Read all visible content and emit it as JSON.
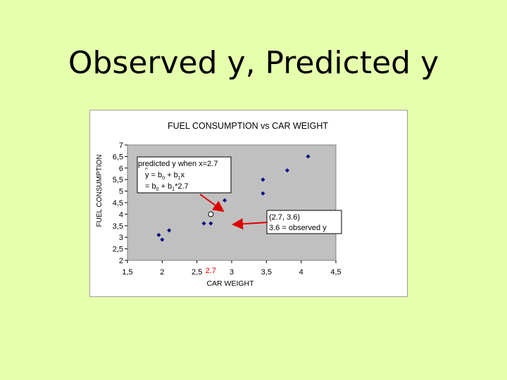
{
  "slide": {
    "title": "Observed y, Predicted y"
  },
  "colors": {
    "background": "#e6ffad",
    "plot_area": "#c0c0c0",
    "marker": "#000080",
    "arrow": "#dd0000",
    "highlight": "#dd0000"
  },
  "chart_data": {
    "type": "scatter",
    "title": "FUEL CONSUMPTION vs CAR WEIGHT",
    "xlabel": "CAR WEIGHT",
    "ylabel": "FUEL CONSUMPTION",
    "xlim": [
      1.5,
      4.5
    ],
    "ylim": [
      2,
      7
    ],
    "x_ticks": [
      1.5,
      2,
      2.5,
      3,
      3.5,
      4,
      4.5
    ],
    "x_tick_labels": [
      "1,5",
      "2",
      "2,5",
      "3",
      "3,5",
      "4",
      "4,5"
    ],
    "y_ticks": [
      2,
      2.5,
      3,
      3.5,
      4,
      4.5,
      5,
      5.5,
      6,
      6.5,
      7
    ],
    "y_tick_labels": [
      "2",
      "2,5",
      "3",
      "3,5",
      "4",
      "4,5",
      "5",
      "5,5",
      "6",
      "6,5",
      "7"
    ],
    "grid": false,
    "points": [
      {
        "x": 1.95,
        "y": 3.1
      },
      {
        "x": 2.0,
        "y": 2.9
      },
      {
        "x": 2.1,
        "y": 3.3
      },
      {
        "x": 2.6,
        "y": 3.6
      },
      {
        "x": 2.7,
        "y": 3.6
      },
      {
        "x": 2.9,
        "y": 4.6
      },
      {
        "x": 3.45,
        "y": 5.5
      },
      {
        "x": 3.45,
        "y": 4.9
      },
      {
        "x": 3.8,
        "y": 5.9
      },
      {
        "x": 4.1,
        "y": 6.5
      }
    ],
    "predicted_point": {
      "x": 2.7,
      "y": 4.0
    },
    "highlight_x_label": "2.7",
    "annotations": {
      "predicted": {
        "line1": "predicted y when x=2.7",
        "line2_lhs": "y",
        "line2_rhs": " = b",
        "line2_mid": " + b",
        "line2_end": "x",
        "line3_start": " = b",
        "line3_mid": " + b",
        "line3_end": "*2.7",
        "sub0": "0",
        "sub1": "1"
      },
      "observed": {
        "line1": "(2.7, 3.6)",
        "line2": "3.6  = observed  y"
      }
    }
  }
}
